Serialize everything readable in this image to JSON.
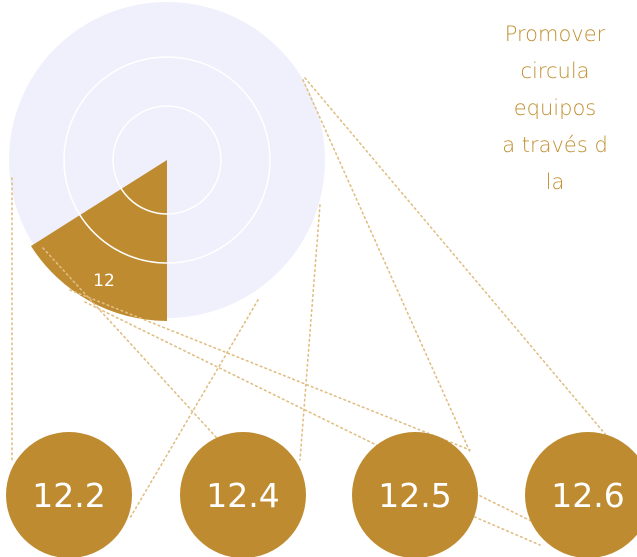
{
  "goal": {
    "number": "12",
    "description_lines": [
      "Promover",
      "circula",
      "equipos",
      "a través d",
      "la"
    ]
  },
  "targets": [
    "12.2",
    "12.4",
    "12.5",
    "12.6"
  ],
  "colors": {
    "gold": "#be8b31",
    "ring": "#eff0fc",
    "ring_line": "#ffffff",
    "dotted": "#e1be83",
    "text": "#c08f30"
  }
}
